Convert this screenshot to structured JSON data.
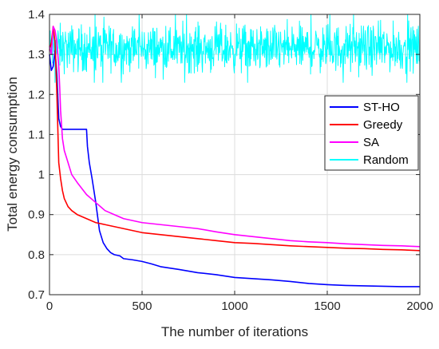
{
  "chart_data": {
    "type": "line",
    "title": "",
    "xlabel": "The number of iterations",
    "ylabel": "Total energy consumption",
    "xlim": [
      0,
      2000
    ],
    "ylim": [
      0.7,
      1.4
    ],
    "xticks": [
      0,
      500,
      1000,
      1500,
      2000
    ],
    "yticks": [
      0.7,
      0.8,
      0.9,
      1.0,
      1.1,
      1.2,
      1.3,
      1.4
    ],
    "xtick_labels": [
      "0",
      "500",
      "1000",
      "1500",
      "2000"
    ],
    "ytick_labels": [
      "0.7",
      "0.8",
      "0.9",
      "1",
      "1.1",
      "1.2",
      "1.3",
      "1.4"
    ],
    "grid": true,
    "legend_position": "right",
    "series": [
      {
        "name": "ST-HO",
        "color": "#0000ff",
        "x": [
          0,
          10,
          20,
          30,
          40,
          50,
          60,
          70,
          80,
          200,
          205,
          215,
          230,
          250,
          270,
          290,
          310,
          330,
          350,
          380,
          400,
          450,
          500,
          550,
          600,
          700,
          800,
          900,
          1000,
          1100,
          1200,
          1300,
          1400,
          1500,
          1600,
          1700,
          1800,
          1900,
          2000
        ],
        "y": [
          1.3,
          1.26,
          1.27,
          1.31,
          1.25,
          1.14,
          1.12,
          1.113,
          1.113,
          1.113,
          1.07,
          1.03,
          0.99,
          0.93,
          0.86,
          0.83,
          0.815,
          0.805,
          0.8,
          0.797,
          0.79,
          0.787,
          0.783,
          0.777,
          0.77,
          0.763,
          0.755,
          0.75,
          0.743,
          0.74,
          0.737,
          0.733,
          0.728,
          0.725,
          0.723,
          0.722,
          0.721,
          0.72,
          0.72
        ]
      },
      {
        "name": "Greedy",
        "color": "#ff0000",
        "x": [
          0,
          10,
          20,
          30,
          40,
          50,
          60,
          70,
          80,
          100,
          120,
          150,
          200,
          250,
          300,
          400,
          500,
          600,
          700,
          800,
          900,
          1000,
          1100,
          1200,
          1300,
          1400,
          1500,
          1600,
          1700,
          1800,
          1900,
          2000
        ],
        "y": [
          1.31,
          1.33,
          1.37,
          1.33,
          1.2,
          1.03,
          0.99,
          0.96,
          0.94,
          0.92,
          0.91,
          0.9,
          0.89,
          0.88,
          0.875,
          0.865,
          0.855,
          0.85,
          0.845,
          0.84,
          0.835,
          0.83,
          0.828,
          0.825,
          0.822,
          0.82,
          0.818,
          0.816,
          0.815,
          0.813,
          0.812,
          0.81
        ]
      },
      {
        "name": "SA",
        "color": "#ff00ff",
        "x": [
          0,
          10,
          20,
          30,
          40,
          50,
          55,
          60,
          70,
          80,
          100,
          120,
          150,
          200,
          250,
          300,
          350,
          400,
          500,
          600,
          700,
          800,
          900,
          1000,
          1100,
          1200,
          1300,
          1400,
          1500,
          1600,
          1700,
          1800,
          1900,
          2000
        ],
        "y": [
          1.32,
          1.3,
          1.37,
          1.36,
          1.33,
          1.27,
          1.22,
          1.16,
          1.09,
          1.06,
          1.03,
          1.0,
          0.98,
          0.95,
          0.93,
          0.91,
          0.9,
          0.89,
          0.88,
          0.875,
          0.87,
          0.865,
          0.857,
          0.85,
          0.845,
          0.84,
          0.835,
          0.832,
          0.83,
          0.827,
          0.825,
          0.823,
          0.822,
          0.82
        ]
      },
      {
        "name": "Random",
        "color": "#00ffff",
        "x": [
          0,
          2000
        ],
        "y": [
          1.3,
          1.3
        ],
        "noise_range": [
          1.23,
          1.4
        ]
      }
    ]
  }
}
